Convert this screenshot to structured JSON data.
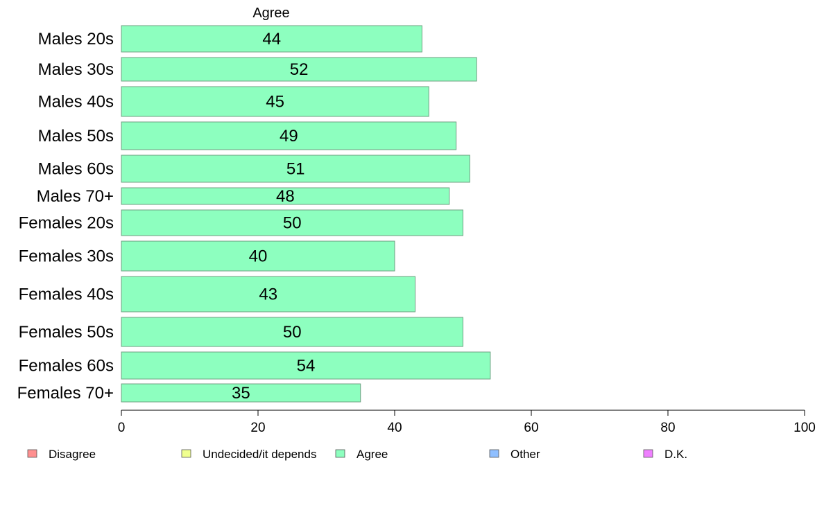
{
  "chart_data": {
    "type": "bar",
    "orientation": "horizontal",
    "stacked": true,
    "series_title": "Agree",
    "categories": [
      "Males 20s",
      "Males 30s",
      "Males 40s",
      "Males 50s",
      "Males 60s",
      "Males 70+",
      "Females 20s",
      "Females 30s",
      "Females 40s",
      "Females 50s",
      "Females 60s",
      "Females 70+"
    ],
    "series": [
      {
        "name": "Agree",
        "color": "#8dffbf",
        "values": [
          44,
          52,
          45,
          49,
          51,
          48,
          50,
          40,
          43,
          50,
          54,
          35
        ]
      }
    ],
    "legend": [
      {
        "name": "Disagree",
        "color": "#ff8f8f"
      },
      {
        "name": "Undecided/it depends",
        "color": "#f0ff8f"
      },
      {
        "name": "Agree",
        "color": "#8dffbf"
      },
      {
        "name": "Other",
        "color": "#8fbfff"
      },
      {
        "name": "D.K.",
        "color": "#ef7fff"
      }
    ],
    "xlim": [
      0,
      100
    ],
    "xticks": [
      0,
      20,
      40,
      60,
      80,
      100
    ],
    "xlabel": "",
    "ylabel": "",
    "grid": false,
    "legend_position": "bottom"
  }
}
